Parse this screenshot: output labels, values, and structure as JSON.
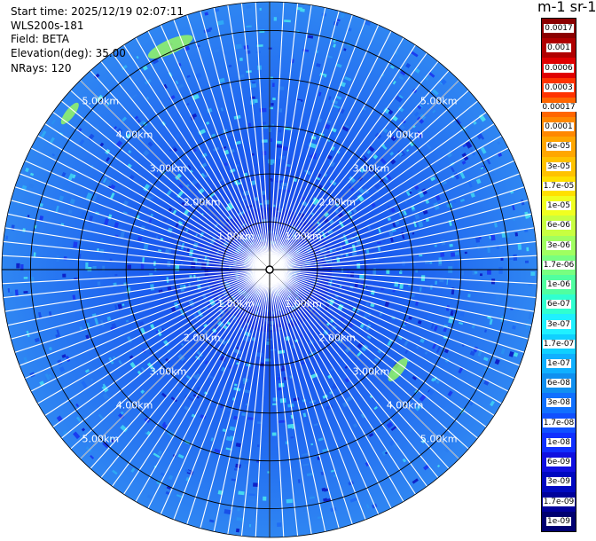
{
  "info": {
    "start_time": "Start time: 2025/12/19 02:07:11",
    "instrument": "WLS200s-181",
    "field": "Field: BETA",
    "elevation": "Elevation(deg): 35.00",
    "nrays": "NRays: 120"
  },
  "colorbar": {
    "title": "m-1 sr-1",
    "labels": [
      "0.0017",
      "0.001",
      "0.0006",
      "0.0003",
      "0.00017",
      "0.0001",
      "6e-05",
      "3e-05",
      "1.7e-05",
      "1e-05",
      "6e-06",
      "3e-06",
      "1.7e-06",
      "1e-06",
      "6e-07",
      "3e-07",
      "1.7e-07",
      "1e-07",
      "6e-08",
      "3e-08",
      "1.7e-08",
      "1e-08",
      "6e-09",
      "3e-09",
      "1.7e-09",
      "1e-09"
    ],
    "colors": [
      "#8b0000",
      "#b00000",
      "#e00000",
      "#ff3300",
      "#ff6600",
      "#ff8800",
      "#ffa600",
      "#ffc200",
      "#ffe000",
      "#f0ff20",
      "#c8ff40",
      "#a0ff60",
      "#78ff80",
      "#50ffa0",
      "#30ffd0",
      "#20f0ff",
      "#10d0ff",
      "#10b0ff",
      "#1090f0",
      "#1070ff",
      "#1050ff",
      "#1030ff",
      "#1010e0",
      "#0008c0",
      "#00009a",
      "#000070"
    ],
    "light_text_from": 15
  },
  "chart_data": {
    "type": "ppi",
    "title": "Start time: 2025/12/19 02:07:11",
    "field": "BETA",
    "units": "m-1 sr-1",
    "elevation_deg": 35.0,
    "nrays": 120,
    "range_max_km": 5.6,
    "range_ring_labels": [
      "1.00km",
      "2.00km",
      "3.00km",
      "4.00km",
      "5.00km"
    ],
    "range_rings_km": [
      1,
      2,
      3,
      4,
      5
    ],
    "dominant_value_range": [
      3e-08,
      1e-07
    ],
    "colors": {
      "background": "#2f7ef0",
      "ring_line": "#000000",
      "ray_gap": "#ffffff",
      "highlight": "#9cff5a"
    }
  }
}
